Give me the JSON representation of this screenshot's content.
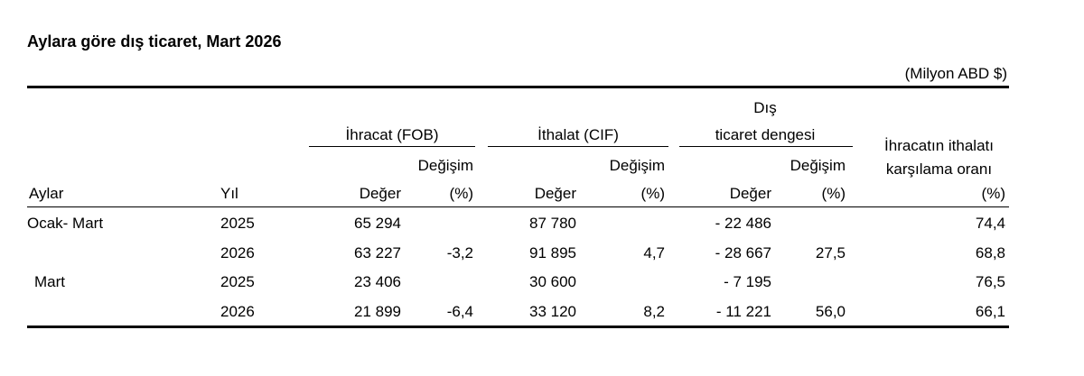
{
  "title": "Aylara göre dış ticaret, Mart 2026",
  "unit": "(Milyon ABD $)",
  "headers": {
    "export_group": "İhracat (FOB)",
    "import_group": "İthalat (CIF)",
    "balance_line1": "Dış",
    "balance_line2": "ticaret dengesi",
    "change": "Değişim",
    "ratio_line1": "İhracatın ithalatı",
    "ratio_line2": "karşılama oranı",
    "ratio_pct": "(%)",
    "months": "Aylar",
    "year": "Yıl",
    "value": "Değer",
    "pct": "(%)"
  },
  "rows": [
    {
      "period": "Ocak- Mart",
      "year": "2025",
      "export": "65 294",
      "export_chg": "",
      "import": "87 780",
      "import_chg": "",
      "balance": "- 22 486",
      "balance_chg": "",
      "ratio": "74,4"
    },
    {
      "period": "",
      "year": "2026",
      "export": "63 227",
      "export_chg": "-3,2",
      "import": "91 895",
      "import_chg": "4,7",
      "balance": "- 28 667",
      "balance_chg": "27,5",
      "ratio": "68,8"
    },
    {
      "period": "Mart",
      "year": "2025",
      "export": "23 406",
      "export_chg": "",
      "import": "30 600",
      "import_chg": "",
      "balance": "- 7 195",
      "balance_chg": "",
      "ratio": "76,5"
    },
    {
      "period": "",
      "year": "2026",
      "export": "21 899",
      "export_chg": "-6,4",
      "import": "33 120",
      "import_chg": "8,2",
      "balance": "- 11 221",
      "balance_chg": "56,0",
      "ratio": "66,1"
    }
  ]
}
